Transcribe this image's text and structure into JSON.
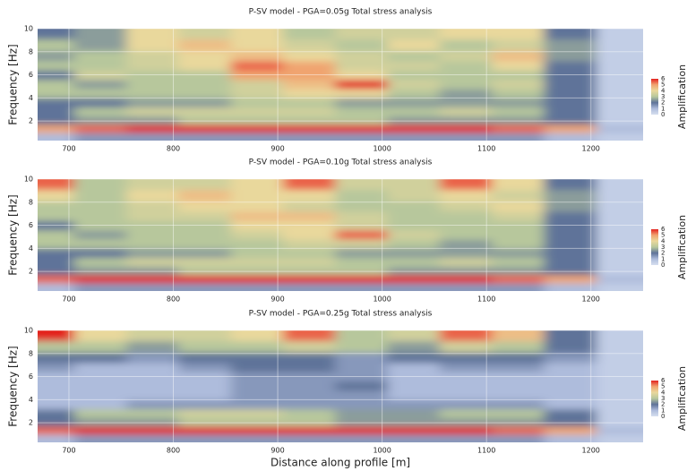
{
  "chart_data": [
    {
      "type": "heatmap",
      "title": "P-SV model - PGA=0.05g Total stress analysis",
      "ylabel": "Frequency [Hz]",
      "colorbar_label": "Amplification",
      "x": [
        680,
        730,
        780,
        830,
        880,
        930,
        980,
        1030,
        1080,
        1130,
        1180,
        1230
      ],
      "y": [
        0.7,
        1.3,
        2.1,
        2.8,
        3.6,
        4.4,
        5.2,
        6,
        6.8,
        7.6,
        8.6,
        9.6
      ],
      "z": [
        [
          1,
          1.5,
          1.5,
          1.5,
          1.5,
          1.5,
          1.5,
          1.5,
          1.5,
          1.5,
          1,
          0.5
        ],
        [
          5,
          5.5,
          6,
          6,
          6,
          6,
          6,
          6,
          6,
          5.5,
          5,
          1
        ],
        [
          2,
          2.5,
          2.5,
          3,
          3,
          3,
          3,
          2.5,
          2.5,
          2.5,
          2,
          0.5
        ],
        [
          2,
          3,
          3.5,
          3.5,
          3.5,
          3.5,
          3,
          3,
          3.5,
          3,
          2,
          0.5
        ],
        [
          2,
          2,
          2.5,
          2.5,
          3,
          3,
          2.5,
          2.5,
          2.5,
          2.5,
          2,
          0.5
        ],
        [
          3,
          3,
          3,
          3,
          3.5,
          4,
          4,
          3,
          2.5,
          3,
          2,
          0.5
        ],
        [
          3,
          2.5,
          3,
          3,
          3.5,
          4.5,
          6,
          3.5,
          3,
          3.5,
          2,
          0.5
        ],
        [
          2,
          3.5,
          3,
          3,
          5,
          5,
          4,
          3,
          3,
          3,
          2,
          0.5
        ],
        [
          3,
          3,
          3.5,
          4,
          5.5,
          5,
          3.5,
          3.5,
          3,
          4,
          2,
          0.5
        ],
        [
          2.5,
          3,
          3.5,
          4,
          4.5,
          4,
          3.5,
          3,
          3.5,
          4.5,
          2.5,
          0.5
        ],
        [
          3,
          2.5,
          4,
          4.5,
          4,
          3.5,
          3,
          4,
          3,
          3.5,
          2.5,
          0.5
        ],
        [
          2,
          2.5,
          4,
          3.5,
          4,
          3,
          3.5,
          3.5,
          4,
          4,
          2,
          0.5
        ]
      ],
      "xlim": [
        670,
        1250
      ],
      "ylim": [
        0.3,
        10
      ],
      "xticks": [
        700,
        800,
        900,
        1000,
        1100,
        1200
      ],
      "yticks": [
        2,
        4,
        6,
        8,
        10
      ],
      "zlim": [
        0,
        6
      ],
      "cticks": [
        0,
        1,
        2,
        3,
        4,
        5,
        6
      ],
      "colorscale": [
        "#d6dff0",
        "#aebcdc",
        "#5f7399",
        "#b7c79c",
        "#e9d89c",
        "#f0a470",
        "#e3221f"
      ],
      "grid": true
    },
    {
      "type": "heatmap",
      "title": "P-SV model - PGA=0.10g Total stress analysis",
      "ylabel": "Frequency [Hz]",
      "colorbar_label": "Amplification",
      "x": [
        680,
        730,
        780,
        830,
        880,
        930,
        980,
        1030,
        1080,
        1130,
        1180,
        1230
      ],
      "y": [
        0.7,
        1.3,
        2.1,
        2.8,
        3.6,
        4.4,
        5.2,
        6,
        6.8,
        7.6,
        8.6,
        9.6
      ],
      "z": [
        [
          1,
          1.5,
          1.5,
          1.5,
          1.5,
          1.5,
          1.5,
          1.5,
          1.5,
          1.5,
          1,
          0.5
        ],
        [
          5.5,
          6,
          6,
          6,
          6,
          6,
          6,
          6,
          6,
          5.5,
          5,
          1
        ],
        [
          2,
          2.5,
          2.5,
          3,
          3,
          3,
          3,
          2.5,
          2.5,
          2.5,
          2,
          0.5
        ],
        [
          2,
          3,
          3.5,
          3.5,
          3.5,
          3.5,
          3,
          3,
          3.5,
          3,
          2,
          0.5
        ],
        [
          2,
          2,
          2.5,
          2.5,
          3,
          3,
          2.5,
          2.5,
          2.5,
          2.5,
          2,
          0.5
        ],
        [
          3,
          3,
          3,
          3,
          3,
          3.5,
          3.5,
          3,
          2.5,
          3,
          2,
          0.5
        ],
        [
          3,
          2.5,
          3,
          3,
          3.5,
          4,
          5.5,
          3.5,
          3,
          3,
          2,
          0.5
        ],
        [
          2,
          3,
          3,
          3,
          4,
          4,
          3.5,
          3,
          3,
          3,
          2,
          0.5
        ],
        [
          3,
          3,
          3.5,
          3.5,
          4.5,
          4.5,
          3.5,
          3,
          3,
          3.5,
          2,
          0.5
        ],
        [
          3,
          3,
          3.5,
          4,
          4,
          3.5,
          3,
          3,
          3.5,
          4,
          2.5,
          0.5
        ],
        [
          4,
          3,
          4,
          4.5,
          4,
          4,
          3,
          3.5,
          4,
          3.5,
          2.5,
          0.5
        ],
        [
          5.5,
          3,
          3.5,
          3.5,
          4,
          5.5,
          3.5,
          3.5,
          5.5,
          4,
          2,
          0.5
        ]
      ],
      "xlim": [
        670,
        1250
      ],
      "ylim": [
        0.3,
        10
      ],
      "xticks": [
        700,
        800,
        900,
        1000,
        1100,
        1200
      ],
      "yticks": [
        2,
        4,
        6,
        8,
        10
      ],
      "zlim": [
        0,
        6
      ],
      "cticks": [
        0,
        1,
        2,
        3,
        4,
        5,
        6
      ],
      "colorscale": [
        "#d6dff0",
        "#aebcdc",
        "#5f7399",
        "#b7c79c",
        "#e9d89c",
        "#f0a470",
        "#e3221f"
      ],
      "grid": true
    },
    {
      "type": "heatmap",
      "title": "P-SV model - PGA=0.25g Total stress analysis",
      "ylabel": "Frequency [Hz]",
      "colorbar_label": "Amplification",
      "xlabel": "Distance along profile [m]",
      "x": [
        680,
        730,
        780,
        830,
        880,
        930,
        980,
        1030,
        1080,
        1130,
        1180,
        1230
      ],
      "y": [
        0.7,
        1.3,
        2.1,
        2.8,
        3.6,
        4.4,
        5.2,
        6,
        6.8,
        7.6,
        8.6,
        9.6
      ],
      "z": [
        [
          1,
          1.5,
          1.5,
          1.5,
          1.5,
          1.5,
          1.5,
          1.5,
          1.5,
          1.5,
          1,
          0.5
        ],
        [
          5.5,
          6,
          6,
          6,
          6,
          6,
          6,
          6,
          6,
          5.5,
          5,
          1
        ],
        [
          2,
          2.5,
          2.5,
          3,
          3,
          3,
          2.5,
          2.5,
          2.5,
          2.5,
          2,
          0.5
        ],
        [
          2,
          3,
          3,
          3.5,
          3.5,
          3,
          2.5,
          2.5,
          3,
          3,
          2,
          0.5
        ],
        [
          1,
          1,
          1.5,
          1.5,
          1.5,
          1.5,
          1.5,
          1.5,
          1.5,
          1.5,
          1,
          0.5
        ],
        [
          1,
          1,
          1,
          1,
          1.5,
          1.5,
          1.5,
          1,
          1,
          1,
          1,
          0.5
        ],
        [
          1,
          1,
          1,
          1,
          1.5,
          1.5,
          2,
          1,
          1,
          1,
          1,
          0.5
        ],
        [
          1,
          1,
          1,
          1,
          1.5,
          1.5,
          1.5,
          1,
          1,
          1,
          1,
          0.5
        ],
        [
          1.5,
          1,
          1,
          1.5,
          2,
          2,
          1.5,
          1,
          1.5,
          1.5,
          1,
          0.5
        ],
        [
          2,
          2,
          1.5,
          2,
          2,
          2,
          1.5,
          2,
          2,
          2,
          1.5,
          0.5
        ],
        [
          3,
          3,
          2.5,
          3,
          3,
          3.5,
          3,
          2.5,
          3.5,
          3,
          2,
          0.5
        ],
        [
          6,
          4,
          3.5,
          3.5,
          4,
          5.5,
          3,
          3.5,
          5.5,
          4.5,
          2,
          0.5
        ]
      ],
      "xlim": [
        670,
        1250
      ],
      "ylim": [
        0.3,
        10
      ],
      "xticks": [
        700,
        800,
        900,
        1000,
        1100,
        1200
      ],
      "yticks": [
        2,
        4,
        6,
        8,
        10
      ],
      "zlim": [
        0,
        6
      ],
      "cticks": [
        0,
        1,
        2,
        3,
        4,
        5,
        6
      ],
      "colorscale": [
        "#d6dff0",
        "#aebcdc",
        "#5f7399",
        "#b7c79c",
        "#e9d89c",
        "#f0a470",
        "#e3221f"
      ],
      "grid": true
    }
  ]
}
